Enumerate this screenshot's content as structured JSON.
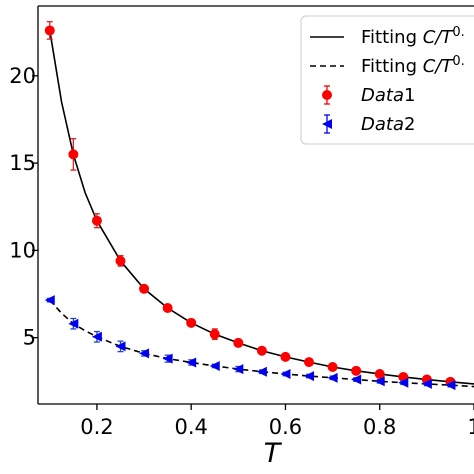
{
  "chart_data": {
    "type": "scatter",
    "title": "",
    "xlabel": "T",
    "ylabel": "",
    "xlim": [
      0.075,
      1.0
    ],
    "ylim": [
      1.2,
      24.0
    ],
    "xticks": [
      0.2,
      0.4,
      0.6,
      0.8,
      1.0
    ],
    "xtick_labels": [
      "0.2",
      "0.4",
      "0.6",
      "0.8",
      "1"
    ],
    "yticks": [
      5,
      10,
      15,
      20
    ],
    "ytick_labels": [
      "5",
      "10",
      "15",
      "20"
    ],
    "grid": false,
    "legend_position": "top-right",
    "series": [
      {
        "name": "Data1",
        "kind": "points-errorbar",
        "marker": "circle",
        "color": "#ff0000",
        "errcolor": "#dd2222",
        "x": [
          0.1,
          0.15,
          0.2,
          0.25,
          0.3,
          0.35,
          0.4,
          0.45,
          0.5,
          0.55,
          0.6,
          0.65,
          0.7,
          0.75,
          0.8,
          0.85,
          0.9,
          0.95
        ],
        "y": [
          22.6,
          15.5,
          11.7,
          9.4,
          7.8,
          6.7,
          5.85,
          5.2,
          4.7,
          4.25,
          3.9,
          3.6,
          3.32,
          3.1,
          2.92,
          2.75,
          2.6,
          2.47
        ],
        "err": [
          0.5,
          0.9,
          0.4,
          0.3,
          0.15,
          0.15,
          0.15,
          0.3,
          0.15,
          0.15,
          0.15,
          0.15,
          0.15,
          0.15,
          0.15,
          0.15,
          0.15,
          0.15
        ]
      },
      {
        "name": "Data2",
        "kind": "points-errorbar",
        "marker": "triangle-left",
        "color": "#0000ee",
        "errcolor": "#2244cc",
        "x": [
          0.1,
          0.15,
          0.2,
          0.25,
          0.3,
          0.35,
          0.4,
          0.45,
          0.5,
          0.55,
          0.6,
          0.65,
          0.7,
          0.75,
          0.8,
          0.85,
          0.9,
          0.95
        ],
        "y": [
          7.15,
          5.8,
          5.05,
          4.5,
          4.1,
          3.8,
          3.58,
          3.38,
          3.2,
          3.05,
          2.92,
          2.8,
          2.7,
          2.6,
          2.5,
          2.42,
          2.35,
          2.28
        ],
        "err": [
          0.1,
          0.3,
          0.3,
          0.3,
          0.15,
          0.2,
          0.15,
          0.1,
          0.15,
          0.1,
          0.1,
          0.1,
          0.1,
          0.1,
          0.1,
          0.1,
          0.1,
          0.1
        ]
      },
      {
        "name": "Fitting C/T^{0.",
        "kind": "line",
        "dash": "solid",
        "color": "#000000",
        "x": [
          0.1,
          0.125,
          0.15,
          0.175,
          0.2,
          0.25,
          0.3,
          0.35,
          0.4,
          0.45,
          0.5,
          0.55,
          0.6,
          0.65,
          0.7,
          0.75,
          0.8,
          0.85,
          0.9,
          0.95,
          1.0
        ],
        "y": [
          22.6,
          18.5,
          15.5,
          13.3,
          11.7,
          9.4,
          7.8,
          6.7,
          5.85,
          5.2,
          4.7,
          4.25,
          3.9,
          3.6,
          3.32,
          3.1,
          2.92,
          2.75,
          2.6,
          2.47,
          2.35
        ]
      },
      {
        "name": "Fitting C/T^{0.",
        "kind": "line",
        "dash": "dashed",
        "color": "#000000",
        "x": [
          0.1,
          0.125,
          0.15,
          0.175,
          0.2,
          0.25,
          0.3,
          0.35,
          0.4,
          0.45,
          0.5,
          0.55,
          0.6,
          0.65,
          0.7,
          0.75,
          0.8,
          0.85,
          0.9,
          0.95,
          1.0
        ],
        "y": [
          7.15,
          6.4,
          5.8,
          5.4,
          5.05,
          4.5,
          4.1,
          3.8,
          3.58,
          3.38,
          3.2,
          3.05,
          2.92,
          2.8,
          2.7,
          2.6,
          2.5,
          2.42,
          2.35,
          2.28,
          2.2
        ]
      }
    ],
    "legend": [
      {
        "label_main": "Fitting ",
        "label_math": "C/T",
        "label_sup": "0.",
        "style": "solid-line"
      },
      {
        "label_main": "Fitting ",
        "label_math": "C/T",
        "label_sup": "0.",
        "style": "dashed-line"
      },
      {
        "label_math": "Data",
        "label_tail": "1",
        "style": "circle",
        "color": "#ff0000"
      },
      {
        "label_math": "Data",
        "label_tail": "2",
        "style": "triangle-left",
        "color": "#0000ee"
      }
    ]
  }
}
